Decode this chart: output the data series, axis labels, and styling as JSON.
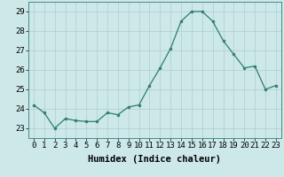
{
  "x": [
    0,
    1,
    2,
    3,
    4,
    5,
    6,
    7,
    8,
    9,
    10,
    11,
    12,
    13,
    14,
    15,
    16,
    17,
    18,
    19,
    20,
    21,
    22,
    23
  ],
  "y": [
    24.2,
    23.8,
    23.0,
    23.5,
    23.4,
    23.35,
    23.35,
    23.8,
    23.7,
    24.1,
    24.2,
    25.2,
    26.1,
    27.1,
    28.5,
    29.0,
    29.0,
    28.5,
    27.5,
    26.8,
    26.1,
    26.2,
    25.0,
    25.2
  ],
  "line_color": "#2e7d6e",
  "marker_color": "#2e7d6e",
  "bg_color": "#cce8e8",
  "grid_color": "#b0cccc",
  "xlabel": "Humidex (Indice chaleur)",
  "ylim": [
    22.5,
    29.5
  ],
  "xlim": [
    -0.5,
    23.5
  ],
  "yticks": [
    23,
    24,
    25,
    26,
    27,
    28,
    29
  ],
  "xticks": [
    0,
    1,
    2,
    3,
    4,
    5,
    6,
    7,
    8,
    9,
    10,
    11,
    12,
    13,
    14,
    15,
    16,
    17,
    18,
    19,
    20,
    21,
    22,
    23
  ],
  "xlabel_fontsize": 7.5,
  "tick_fontsize": 6.5
}
